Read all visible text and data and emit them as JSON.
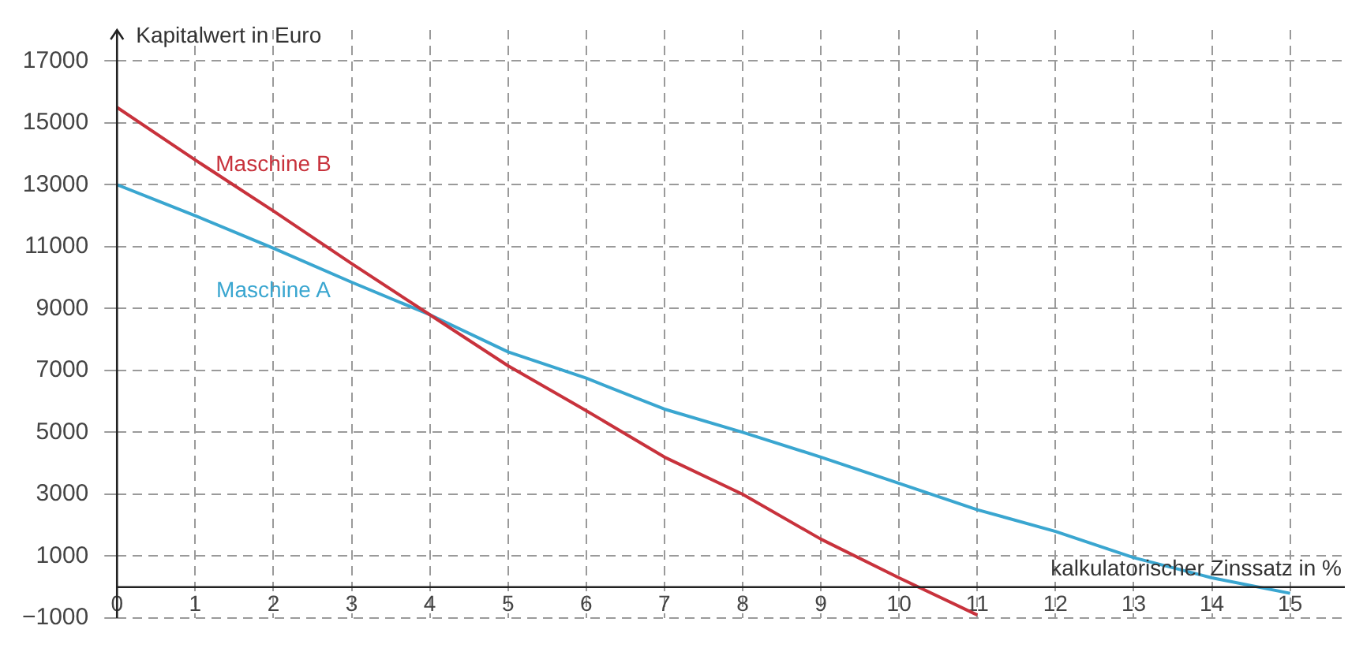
{
  "chart_data": {
    "type": "line",
    "xlabel": "kalkulatorischer Zinssatz in %",
    "ylabel": "Kapitalwert in Euro",
    "x": [
      0,
      1,
      2,
      3,
      4,
      5,
      6,
      7,
      8,
      9,
      10,
      11,
      12,
      13,
      14,
      15
    ],
    "series": [
      {
        "name": "Maschine B",
        "color": "#c8323c",
        "values": [
          15500,
          13800,
          12150,
          10450,
          8800,
          7150,
          5700,
          4200,
          3000,
          1550,
          300,
          -900,
          null,
          null,
          null,
          null
        ]
      },
      {
        "name": "Maschine A",
        "color": "#3aa6d0",
        "values": [
          13000,
          12000,
          10950,
          9850,
          8800,
          7600,
          6750,
          5750,
          5000,
          4200,
          3350,
          2500,
          1800,
          950,
          300,
          -200
        ]
      }
    ],
    "xlim": [
      0,
      15.7
    ],
    "ylim": [
      -1000,
      18000
    ],
    "xticks": [
      0,
      1,
      2,
      3,
      4,
      5,
      6,
      7,
      8,
      9,
      10,
      11,
      12,
      13,
      14,
      15
    ],
    "yticks": [
      {
        "value": -1000,
        "label": "−1000"
      },
      1000,
      3000,
      5000,
      7000,
      9000,
      11000,
      13000,
      15000,
      17000
    ],
    "grid": true,
    "legend": false,
    "marker": "none",
    "line_style": "solid"
  }
}
